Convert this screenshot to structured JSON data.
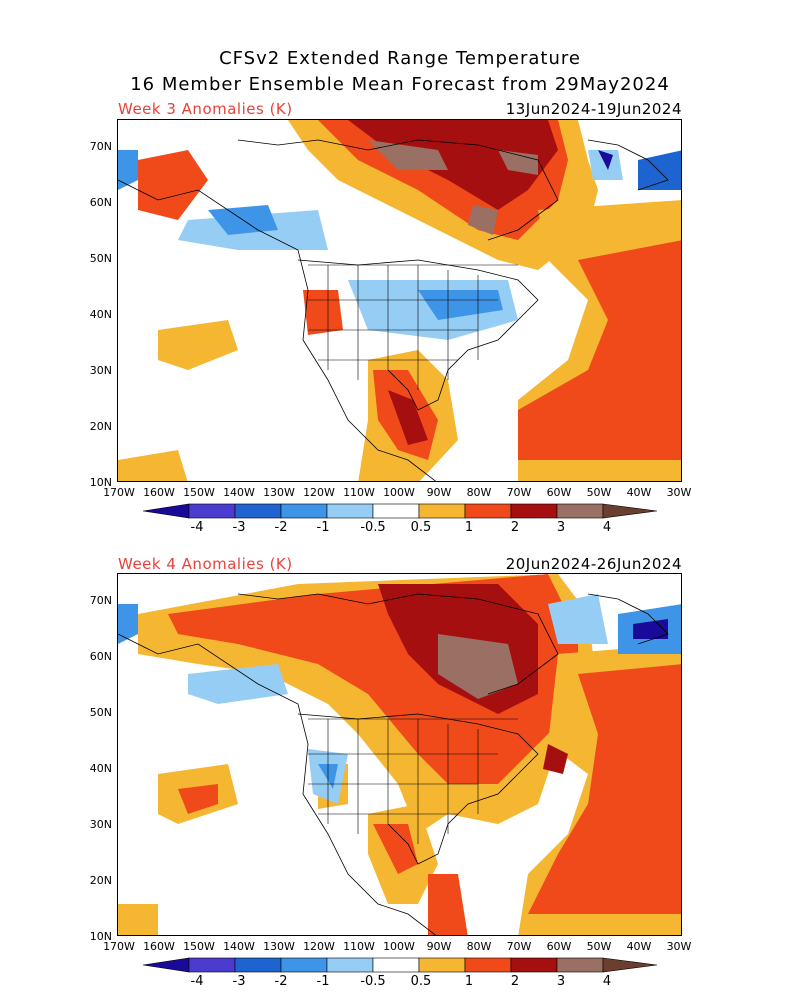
{
  "title": {
    "line1": "CFSv2 Extended Range Temperature",
    "line2": "16 Member Ensemble Mean Forecast from 29May2024"
  },
  "panels": [
    {
      "week_label": "Week 3 Anomalies (K)",
      "date_range": "13Jun2024-19Jun2024"
    },
    {
      "week_label": "Week 4 Anomalies (K)",
      "date_range": "20Jun2024-26Jun2024"
    }
  ],
  "lat_ticks": [
    "70N",
    "60N",
    "50N",
    "40N",
    "30N",
    "20N",
    "10N"
  ],
  "lon_ticks": [
    "170W",
    "160W",
    "150W",
    "140W",
    "130W",
    "120W",
    "110W",
    "100W",
    "90W",
    "80W",
    "70W",
    "60W",
    "50W",
    "40W",
    "30W"
  ],
  "colorbar": {
    "labels": [
      "-4",
      "-3",
      "-2",
      "-1",
      "-0.5",
      "0.5",
      "1",
      "2",
      "3",
      "4"
    ],
    "colors": [
      "#1a0a9a",
      "#4b3ccf",
      "#1e64d0",
      "#3e95e8",
      "#96cdf5",
      "#ffffff",
      "#f5b632",
      "#f04a1a",
      "#a50f0f",
      "#9a7065",
      "#6b3e30"
    ]
  }
}
